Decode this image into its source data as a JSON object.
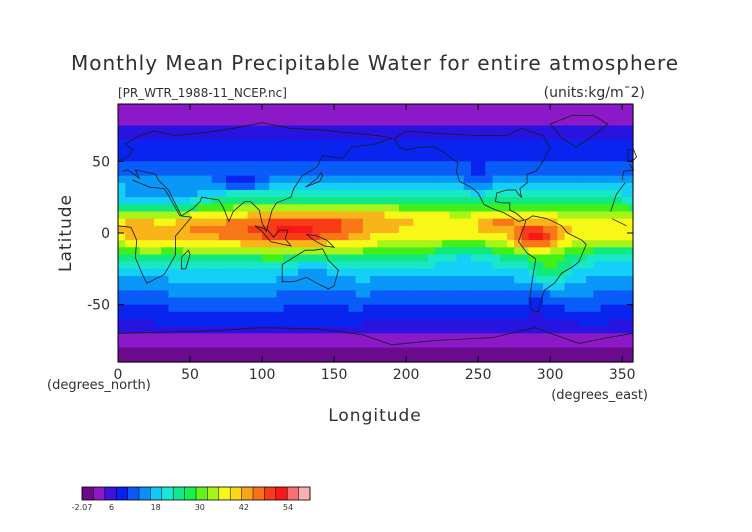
{
  "chart_data": {
    "type": "heatmap",
    "title": "Monthly Mean Precipitable Water for entire atmosphere",
    "file_label": "[PR_WTR_1988-11_NCEP.nc]",
    "units_label": "(units:kg/m^2)",
    "xlabel": "Longitude",
    "ylabel": "Latitude",
    "x_unit_label": "(degrees_east)",
    "y_unit_label": "(degrees_north)",
    "xlim": [
      0,
      357.5
    ],
    "ylim": [
      -90,
      90
    ],
    "x_ticks": [
      0,
      50,
      100,
      150,
      200,
      250,
      300,
      350
    ],
    "y_ticks": [
      -50,
      0,
      50
    ],
    "colorbar": {
      "min": -2.07,
      "max": 60,
      "tick_labels": [
        "-2.07",
        "6",
        "18",
        "30",
        "42",
        "54"
      ],
      "tick_values": [
        -2.07,
        6,
        18,
        30,
        42,
        54
      ],
      "colors": [
        "#6a0a8c",
        "#8c18c8",
        "#3c14d8",
        "#0a20f0",
        "#0a58f8",
        "#0a90f8",
        "#12c8f8",
        "#18e8d8",
        "#10e890",
        "#18f050",
        "#60f418",
        "#a8f418",
        "#f8f818",
        "#f8d818",
        "#f8a418",
        "#f87018",
        "#f83c18",
        "#f81818",
        "#f87070",
        "#f8b0b0"
      ]
    },
    "color_scale": [
      {
        "v": -2.07,
        "c": "#6a0a8c"
      },
      {
        "v": 2,
        "c": "#8c18c8"
      },
      {
        "v": 5,
        "c": "#2814e0"
      },
      {
        "v": 8,
        "c": "#0a24f0"
      },
      {
        "v": 12,
        "c": "#0a5cf8"
      },
      {
        "v": 16,
        "c": "#0a98f8"
      },
      {
        "v": 20,
        "c": "#14d0f8"
      },
      {
        "v": 24,
        "c": "#18e8c8"
      },
      {
        "v": 28,
        "c": "#10e880"
      },
      {
        "v": 32,
        "c": "#40f018"
      },
      {
        "v": 36,
        "c": "#a8f418"
      },
      {
        "v": 40,
        "c": "#f8f818"
      },
      {
        "v": 44,
        "c": "#f8b418"
      },
      {
        "v": 48,
        "c": "#f87818"
      },
      {
        "v": 52,
        "c": "#f83c18"
      },
      {
        "v": 56,
        "c": "#f81818"
      },
      {
        "v": 60,
        "c": "#f87070"
      }
    ],
    "zonal_profile": {
      "lat": [
        -90,
        -80,
        -70,
        -60,
        -50,
        -40,
        -30,
        -20,
        -10,
        0,
        10,
        20,
        30,
        40,
        50,
        60,
        70,
        80,
        90
      ],
      "pw": [
        1,
        2,
        5,
        9,
        13,
        17,
        21,
        28,
        38,
        44,
        42,
        32,
        23,
        17,
        12,
        9,
        6,
        4,
        3
      ]
    },
    "anomalies": [
      {
        "lon": 115,
        "lat": 2,
        "dlon": 35,
        "dlat": 14,
        "amp": 12
      },
      {
        "lon": 150,
        "lat": 5,
        "dlon": 25,
        "dlat": 10,
        "amp": 6
      },
      {
        "lon": 290,
        "lat": -3,
        "dlon": 15,
        "dlat": 10,
        "amp": 14
      },
      {
        "lon": 265,
        "lat": 8,
        "dlon": 14,
        "dlat": 6,
        "amp": 6
      },
      {
        "lon": 60,
        "lat": 2,
        "dlon": 25,
        "dlat": 10,
        "amp": 5
      },
      {
        "lon": 15,
        "lat": 0,
        "dlon": 12,
        "dlat": 12,
        "amp": 4
      },
      {
        "lon": 300,
        "lat": -28,
        "dlon": 12,
        "dlat": 10,
        "amp": 9
      },
      {
        "lon": 185,
        "lat": 12,
        "dlon": 30,
        "dlat": 6,
        "amp": 4
      },
      {
        "lon": 240,
        "lat": -15,
        "dlon": 25,
        "dlat": 12,
        "amp": -7
      },
      {
        "lon": 345,
        "lat": -15,
        "dlon": 20,
        "dlat": 10,
        "amp": -6
      },
      {
        "lon": 40,
        "lat": 25,
        "dlon": 20,
        "dlat": 10,
        "amp": -9
      },
      {
        "lon": 85,
        "lat": 36,
        "dlon": 18,
        "dlat": 6,
        "amp": -10
      },
      {
        "lon": 10,
        "lat": 22,
        "dlon": 15,
        "dlat": 8,
        "amp": -8
      },
      {
        "lon": 135,
        "lat": -25,
        "dlon": 12,
        "dlat": 8,
        "amp": -6
      },
      {
        "lon": 290,
        "lat": -50,
        "dlon": 8,
        "dlat": 12,
        "amp": -4
      },
      {
        "lon": 250,
        "lat": 38,
        "dlon": 10,
        "dlat": 10,
        "amp": -5
      }
    ]
  }
}
